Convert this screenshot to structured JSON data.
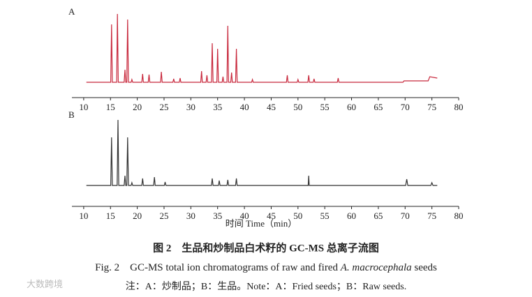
{
  "chart_data": [
    {
      "type": "line",
      "title": "A",
      "x": [
        10.5,
        15.05,
        15.2,
        15.35,
        16.15,
        16.3,
        16.45,
        17.55,
        17.7,
        17.85,
        18.05,
        18.2,
        18.35,
        18.85,
        19,
        19.15,
        20.85,
        21,
        21.15,
        22.05,
        22.2,
        22.35,
        24.35,
        24.5,
        24.65,
        26.65,
        26.8,
        26.95,
        27.85,
        28,
        28.15,
        31.85,
        32,
        32.15,
        32.85,
        33,
        33.15,
        33.85,
        34,
        34.15,
        34.85,
        35,
        35.15,
        35.85,
        36,
        36.15,
        36.75,
        36.9,
        37.05,
        37.45,
        37.6,
        37.75,
        38.35,
        38.5,
        38.65,
        41.35,
        41.5,
        41.65,
        47.85,
        48,
        48.15,
        49.85,
        50,
        50.15,
        51.85,
        52,
        52.15,
        52.85,
        53,
        53.15,
        57.35,
        57.5,
        57.65,
        69.6,
        69.8,
        74.3,
        74.6,
        76
      ],
      "series": [
        {
          "color": "#c8283c",
          "values": [
            0,
            0,
            83,
            0,
            0,
            98,
            0,
            0,
            18,
            0,
            0,
            90,
            0,
            0,
            4,
            0,
            0,
            12,
            0,
            0,
            11,
            0,
            0,
            15,
            0,
            0,
            5,
            0,
            0,
            6,
            0,
            0,
            16,
            0,
            0,
            10,
            0,
            0,
            56,
            0,
            0,
            48,
            0,
            0,
            8,
            0,
            0,
            81,
            0,
            0,
            14,
            0,
            0,
            48,
            0,
            0,
            4,
            0,
            0,
            10,
            0,
            0,
            4,
            0,
            0,
            10,
            0,
            0,
            5,
            0,
            0,
            6,
            0,
            0,
            2,
            2,
            8,
            6
          ]
        }
      ],
      "xlim": [
        7.8,
        80
      ],
      "xticks": [
        10,
        15,
        20,
        25,
        30,
        35,
        40,
        45,
        50,
        55,
        60,
        65,
        70,
        75,
        80
      ],
      "ylim": [
        -10,
        110
      ]
    },
    {
      "type": "line",
      "title": "B",
      "xlabel": "时间 Time（min）",
      "x": [
        10.5,
        15.05,
        15.2,
        15.35,
        16.25,
        16.4,
        16.55,
        17.55,
        17.7,
        17.85,
        18.05,
        18.2,
        18.35,
        18.85,
        19,
        19.15,
        20.85,
        21,
        21.15,
        23.05,
        23.2,
        23.35,
        25.05,
        25.2,
        25.35,
        33.85,
        34,
        34.15,
        35.15,
        35.3,
        35.45,
        36.75,
        36.9,
        37.05,
        38.35,
        38.5,
        38.65,
        51.9,
        52,
        52.1,
        70.1,
        70.3,
        70.5,
        74.8,
        75,
        75.2,
        76
      ],
      "series": [
        {
          "color": "#333333",
          "values": [
            0,
            0,
            69,
            0,
            0,
            94,
            0,
            0,
            14,
            0,
            0,
            69,
            0,
            0,
            4,
            0,
            0,
            10,
            0,
            0,
            12,
            0,
            0,
            5,
            0,
            0,
            10,
            0,
            0,
            7,
            0,
            0,
            8,
            0,
            0,
            10,
            0,
            0,
            14,
            0,
            0,
            9,
            0,
            0,
            4,
            0,
            0
          ]
        }
      ],
      "xlim": [
        7.8,
        80
      ],
      "xticks": [
        10,
        15,
        20,
        25,
        30,
        35,
        40,
        45,
        50,
        55,
        60,
        65,
        70,
        75,
        80
      ],
      "ylim": [
        -10,
        110
      ]
    }
  ],
  "caption": {
    "chinese": "图 2　生品和炒制品白术籽的 GC-MS 总离子流图",
    "english": [
      "Fig. 2　GC-MS total ion chromatograms of raw and fired ",
      "A. macrocephala",
      " seeds"
    ],
    "note": "注：A：炒制品；B：生品。Note：A：Fried seeds；B：Raw seeds."
  },
  "watermark": "大数跨境"
}
